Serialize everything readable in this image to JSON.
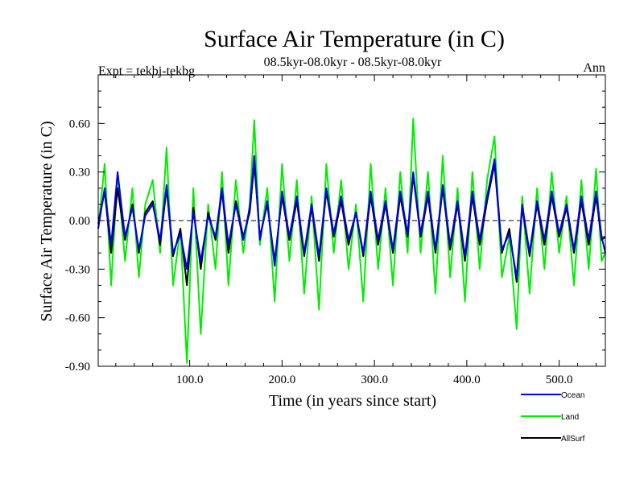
{
  "chart_data": {
    "type": "line",
    "title": "Surface Air Temperature (in C)",
    "subtitle": "08.5kyr-08.0kyr - 08.5kyr-08.0kyr",
    "expt_label": "Expt = tekbj-tekbg",
    "season_label": "Ann",
    "xlabel": "Time (in years since start)",
    "ylabel": "Surface Air Temperature (in C)",
    "xlim": [
      1,
      550
    ],
    "ylim": [
      -0.9,
      0.9
    ],
    "x_ticks": [
      100,
      200,
      300,
      400,
      500
    ],
    "x_tick_labels": [
      "100.0",
      "200.0",
      "300.0",
      "400.0",
      "500.0"
    ],
    "y_ticks": [
      -0.9,
      -0.6,
      -0.3,
      0.0,
      0.3,
      0.6
    ],
    "y_tick_labels": [
      "-0.90",
      "-0.60",
      "-0.30",
      "0.00",
      "0.30",
      "0.60"
    ],
    "zero_line": true,
    "legend_position": "below-right",
    "series": [
      {
        "name": "Land",
        "color": "#00ee00",
        "x": [
          1,
          8,
          15,
          22,
          30,
          38,
          45,
          52,
          60,
          68,
          75,
          82,
          90,
          97,
          104,
          112,
          120,
          128,
          135,
          142,
          150,
          158,
          165,
          170,
          176,
          184,
          192,
          200,
          208,
          216,
          224,
          232,
          240,
          248,
          256,
          264,
          272,
          280,
          288,
          296,
          304,
          312,
          320,
          328,
          336,
          342,
          350,
          358,
          366,
          374,
          382,
          390,
          398,
          406,
          414,
          422,
          430,
          438,
          446,
          454,
          460,
          468,
          476,
          484,
          492,
          500,
          508,
          516,
          524,
          532,
          540,
          546,
          550
        ],
        "y": [
          -0.05,
          0.35,
          -0.4,
          0.3,
          -0.25,
          0.2,
          -0.35,
          0.1,
          0.25,
          -0.2,
          0.45,
          -0.4,
          -0.05,
          -0.88,
          0.2,
          -0.7,
          0.1,
          -0.3,
          0.3,
          -0.4,
          0.25,
          -0.2,
          0.1,
          0.62,
          -0.15,
          0.2,
          -0.5,
          0.35,
          -0.25,
          0.25,
          -0.45,
          0.15,
          -0.55,
          0.35,
          -0.2,
          0.25,
          -0.3,
          0.1,
          -0.5,
          0.35,
          -0.3,
          0.2,
          -0.4,
          0.3,
          -0.2,
          0.63,
          -0.2,
          0.3,
          -0.45,
          0.4,
          -0.35,
          0.2,
          -0.5,
          0.3,
          -0.3,
          0.25,
          0.52,
          -0.35,
          -0.1,
          -0.67,
          0.15,
          -0.45,
          0.2,
          -0.3,
          0.3,
          -0.2,
          0.15,
          -0.4,
          0.25,
          -0.3,
          0.32,
          -0.25,
          -0.2
        ]
      },
      {
        "name": "AllSurf",
        "color": "#000000",
        "x": [
          1,
          8,
          15,
          22,
          30,
          38,
          45,
          52,
          60,
          68,
          75,
          82,
          90,
          97,
          104,
          112,
          120,
          128,
          135,
          142,
          150,
          158,
          165,
          170,
          176,
          184,
          192,
          200,
          208,
          216,
          224,
          232,
          240,
          248,
          256,
          264,
          272,
          280,
          288,
          296,
          304,
          312,
          320,
          328,
          336,
          342,
          350,
          358,
          366,
          374,
          382,
          390,
          398,
          406,
          414,
          422,
          430,
          438,
          446,
          454,
          460,
          468,
          476,
          484,
          492,
          500,
          508,
          516,
          524,
          532,
          540,
          546,
          550
        ],
        "y": [
          -0.02,
          0.18,
          -0.2,
          0.2,
          -0.12,
          0.1,
          -0.2,
          0.05,
          0.12,
          -0.15,
          0.2,
          -0.22,
          -0.05,
          -0.4,
          0.08,
          -0.3,
          0.05,
          -0.12,
          0.18,
          -0.2,
          0.12,
          -0.1,
          0.05,
          0.35,
          -0.1,
          0.1,
          -0.25,
          0.15,
          -0.12,
          0.12,
          -0.22,
          0.08,
          -0.25,
          0.18,
          -0.1,
          0.12,
          -0.15,
          0.05,
          -0.22,
          0.15,
          -0.15,
          0.1,
          -0.2,
          0.15,
          -0.1,
          0.28,
          -0.1,
          0.15,
          -0.2,
          0.2,
          -0.18,
          0.1,
          -0.25,
          0.15,
          -0.15,
          0.12,
          0.35,
          -0.2,
          -0.05,
          -0.38,
          0.08,
          -0.22,
          0.1,
          -0.15,
          0.15,
          -0.1,
          0.08,
          -0.2,
          0.12,
          -0.15,
          0.15,
          -0.12,
          -0.1
        ]
      },
      {
        "name": "Ocean",
        "color": "#0000ee",
        "x": [
          1,
          8,
          15,
          22,
          30,
          38,
          45,
          52,
          60,
          68,
          75,
          82,
          90,
          97,
          104,
          112,
          120,
          128,
          135,
          142,
          150,
          158,
          165,
          170,
          176,
          184,
          192,
          200,
          208,
          216,
          224,
          232,
          240,
          248,
          256,
          264,
          272,
          280,
          288,
          296,
          304,
          312,
          320,
          328,
          336,
          342,
          350,
          358,
          366,
          374,
          382,
          390,
          398,
          406,
          414,
          422,
          430,
          438,
          446,
          454,
          460,
          468,
          476,
          484,
          492,
          500,
          508,
          516,
          524,
          532,
          540,
          546,
          550
        ],
        "y": [
          -0.05,
          0.2,
          -0.15,
          0.3,
          -0.1,
          0.08,
          -0.18,
          0.03,
          0.1,
          -0.12,
          0.22,
          -0.2,
          -0.08,
          -0.3,
          0.05,
          -0.25,
          0.03,
          -0.1,
          0.2,
          -0.15,
          0.1,
          -0.12,
          0.08,
          0.4,
          -0.12,
          0.12,
          -0.28,
          0.18,
          -0.1,
          0.15,
          -0.2,
          0.1,
          -0.22,
          0.2,
          -0.08,
          0.15,
          -0.12,
          0.05,
          -0.2,
          0.18,
          -0.12,
          0.12,
          -0.18,
          0.18,
          -0.08,
          0.3,
          -0.08,
          0.18,
          -0.18,
          0.22,
          -0.15,
          0.12,
          -0.22,
          0.18,
          -0.12,
          0.15,
          0.38,
          -0.18,
          -0.08,
          -0.35,
          0.1,
          -0.2,
          0.12,
          -0.12,
          0.18,
          -0.08,
          0.1,
          -0.18,
          0.15,
          -0.12,
          0.18,
          -0.1,
          -0.2
        ]
      }
    ],
    "legend_order": [
      "Ocean",
      "Land",
      "AllSurf"
    ]
  }
}
